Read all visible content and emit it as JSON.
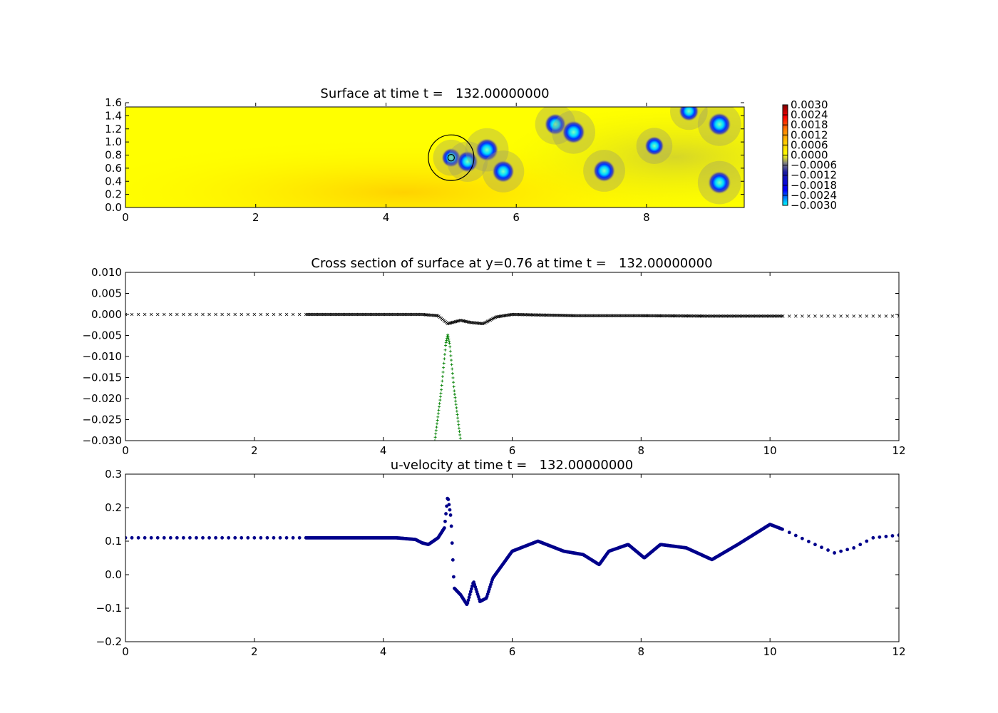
{
  "colors": {
    "background": "#ffffff",
    "axes": "#000000",
    "cross_marker": "#000000",
    "plus_marker": "#008000",
    "dot_marker": "#00008b",
    "surface_base": "#ffff00",
    "colormap": [
      "#00ffff",
      "#0000ff",
      "#808080",
      "#ffff00",
      "#ff8000",
      "#ff0000",
      "#7f0000"
    ]
  },
  "chart_data": [
    {
      "id": "surface",
      "type": "heatmap",
      "title": "Surface at time t =   132.00000000",
      "xlim": [
        0,
        9.5
      ],
      "ylim": [
        0,
        1.6
      ],
      "xticks": [
        "0",
        "2",
        "4",
        "6",
        "8"
      ],
      "yticks": [
        "0.0",
        "0.2",
        "0.4",
        "0.6",
        "0.8",
        "1.0",
        "1.2",
        "1.4",
        "1.6"
      ],
      "colorbar": {
        "vmin": -0.003,
        "vmax": 0.003,
        "ticks": [
          "0.0030",
          "0.0024",
          "0.0018",
          "0.0012",
          "0.0006",
          "0.0000",
          "−0.0006",
          "−0.0012",
          "−0.0018",
          "−0.0024",
          "−0.0030"
        ]
      },
      "depressions": [
        {
          "x": 5.0,
          "y": 0.76,
          "v": -0.002
        },
        {
          "x": 5.25,
          "y": 0.7,
          "v": -0.0026
        },
        {
          "x": 5.55,
          "y": 0.88,
          "v": -0.003
        },
        {
          "x": 5.8,
          "y": 0.55,
          "v": -0.0028
        },
        {
          "x": 6.6,
          "y": 1.27,
          "v": -0.0026
        },
        {
          "x": 6.88,
          "y": 1.15,
          "v": -0.003
        },
        {
          "x": 7.35,
          "y": 0.56,
          "v": -0.0028
        },
        {
          "x": 8.12,
          "y": 0.94,
          "v": -0.002
        },
        {
          "x": 8.65,
          "y": 1.47,
          "v": -0.0022
        },
        {
          "x": 9.12,
          "y": 1.27,
          "v": -0.003
        },
        {
          "x": 9.12,
          "y": 0.38,
          "v": -0.003
        }
      ],
      "annotations": [
        {
          "shape": "circle",
          "x": 5.0,
          "y": 0.76,
          "r": 0.35
        },
        {
          "shape": "circle",
          "x": 5.0,
          "y": 0.76,
          "r": 0.05
        }
      ]
    },
    {
      "id": "cross_section",
      "type": "scatter",
      "title": "Cross section of surface at y=0.76 at time t =   132.00000000",
      "xlim": [
        0,
        12
      ],
      "ylim": [
        -0.03,
        0.01
      ],
      "xticks": [
        "0",
        "2",
        "4",
        "6",
        "8",
        "10",
        "12"
      ],
      "yticks": [
        "0.010",
        "0.005",
        "0.000",
        "−0.005",
        "−0.010",
        "−0.015",
        "−0.020",
        "−0.025",
        "−0.030"
      ],
      "series": [
        {
          "marker": "x",
          "points": [
            [
              0,
              0.0
            ],
            [
              2.8,
              0.0
            ],
            [
              4.6,
              0.0
            ],
            [
              4.85,
              -0.0003
            ],
            [
              5.0,
              -0.0022
            ],
            [
              5.2,
              -0.0014
            ],
            [
              5.35,
              -0.0019
            ],
            [
              5.55,
              -0.0022
            ],
            [
              5.75,
              -0.0006
            ],
            [
              6.0,
              0.0
            ],
            [
              7.0,
              -0.0003
            ],
            [
              8.0,
              -0.0003
            ],
            [
              9.0,
              -0.0004
            ],
            [
              10.2,
              -0.0004
            ],
            [
              12,
              -0.0004
            ]
          ]
        },
        {
          "marker": "+",
          "points": [
            [
              4.8,
              -0.03
            ],
            [
              4.9,
              -0.018
            ],
            [
              4.97,
              -0.007
            ],
            [
              5.0,
              -0.0048
            ],
            [
              5.03,
              -0.007
            ],
            [
              5.1,
              -0.018
            ],
            [
              5.2,
              -0.03
            ]
          ]
        }
      ]
    },
    {
      "id": "u_velocity",
      "type": "scatter",
      "title": "u-velocity at time t =   132.00000000",
      "xlim": [
        0,
        12
      ],
      "ylim": [
        -0.2,
        0.3
      ],
      "xticks": [
        "0",
        "2",
        "4",
        "6",
        "8",
        "10",
        "12"
      ],
      "yticks": [
        "0.3",
        "0.2",
        "0.1",
        "0.0",
        "−0.1",
        "−0.2"
      ],
      "series": [
        {
          "marker": "o",
          "points": [
            [
              0,
              0.11
            ],
            [
              2.8,
              0.11
            ],
            [
              4.2,
              0.11
            ],
            [
              4.5,
              0.105
            ],
            [
              4.6,
              0.095
            ],
            [
              4.7,
              0.09
            ],
            [
              4.85,
              0.11
            ],
            [
              4.95,
              0.14
            ],
            [
              5.0,
              0.235
            ],
            [
              5.05,
              0.17
            ],
            [
              5.1,
              -0.04
            ],
            [
              5.2,
              -0.06
            ],
            [
              5.3,
              -0.09
            ],
            [
              5.4,
              -0.02
            ],
            [
              5.5,
              -0.08
            ],
            [
              5.6,
              -0.07
            ],
            [
              5.7,
              -0.01
            ],
            [
              6.0,
              0.07
            ],
            [
              6.4,
              0.1
            ],
            [
              6.8,
              0.07
            ],
            [
              7.1,
              0.06
            ],
            [
              7.35,
              0.03
            ],
            [
              7.5,
              0.07
            ],
            [
              7.8,
              0.09
            ],
            [
              8.05,
              0.05
            ],
            [
              8.3,
              0.09
            ],
            [
              8.7,
              0.08
            ],
            [
              9.1,
              0.045
            ],
            [
              9.5,
              0.09
            ],
            [
              10.0,
              0.15
            ],
            [
              10.2,
              0.135
            ],
            [
              10.7,
              0.09
            ],
            [
              11.0,
              0.065
            ],
            [
              11.3,
              0.08
            ],
            [
              11.6,
              0.11
            ],
            [
              12.0,
              0.118
            ]
          ]
        }
      ]
    }
  ]
}
